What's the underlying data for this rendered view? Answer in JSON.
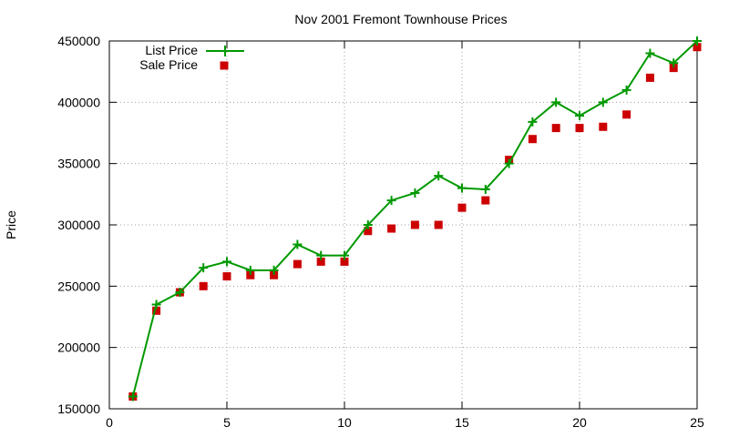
{
  "chart_data": {
    "type": "line",
    "title": "Nov 2001 Fremont Townhouse Prices",
    "xlabel": "",
    "ylabel": "Price",
    "xlim": [
      0,
      25
    ],
    "ylim": [
      150000,
      450000
    ],
    "xticks": [
      0,
      5,
      10,
      15,
      20,
      25
    ],
    "yticks": [
      150000,
      200000,
      250000,
      300000,
      350000,
      400000,
      450000
    ],
    "grid": true,
    "legend_position": "top-left",
    "series": [
      {
        "name": "List Price",
        "style": "line-with-plus-markers",
        "color": "#009900",
        "x": [
          1,
          2,
          3,
          4,
          5,
          6,
          7,
          8,
          9,
          10,
          11,
          12,
          13,
          14,
          15,
          16,
          17,
          18,
          19,
          20,
          21,
          22,
          23,
          24,
          25
        ],
        "y": [
          160000,
          235000,
          245000,
          265000,
          270000,
          263000,
          263000,
          284000,
          275000,
          275000,
          300000,
          320000,
          326000,
          340000,
          330000,
          329000,
          350000,
          384000,
          400000,
          389000,
          400000,
          410000,
          440000,
          432000,
          450000
        ]
      },
      {
        "name": "Sale Price",
        "style": "square-markers",
        "color": "#cc0000",
        "x": [
          1,
          2,
          3,
          4,
          5,
          6,
          7,
          8,
          9,
          10,
          11,
          12,
          13,
          14,
          15,
          16,
          17,
          18,
          19,
          20,
          21,
          22,
          23,
          24,
          25
        ],
        "y": [
          160000,
          230000,
          245000,
          250000,
          258000,
          259000,
          259000,
          268000,
          270000,
          270000,
          295000,
          297000,
          300000,
          300000,
          314000,
          320000,
          353000,
          370000,
          379000,
          379000,
          380000,
          390000,
          420000,
          428000,
          445000
        ]
      }
    ]
  }
}
